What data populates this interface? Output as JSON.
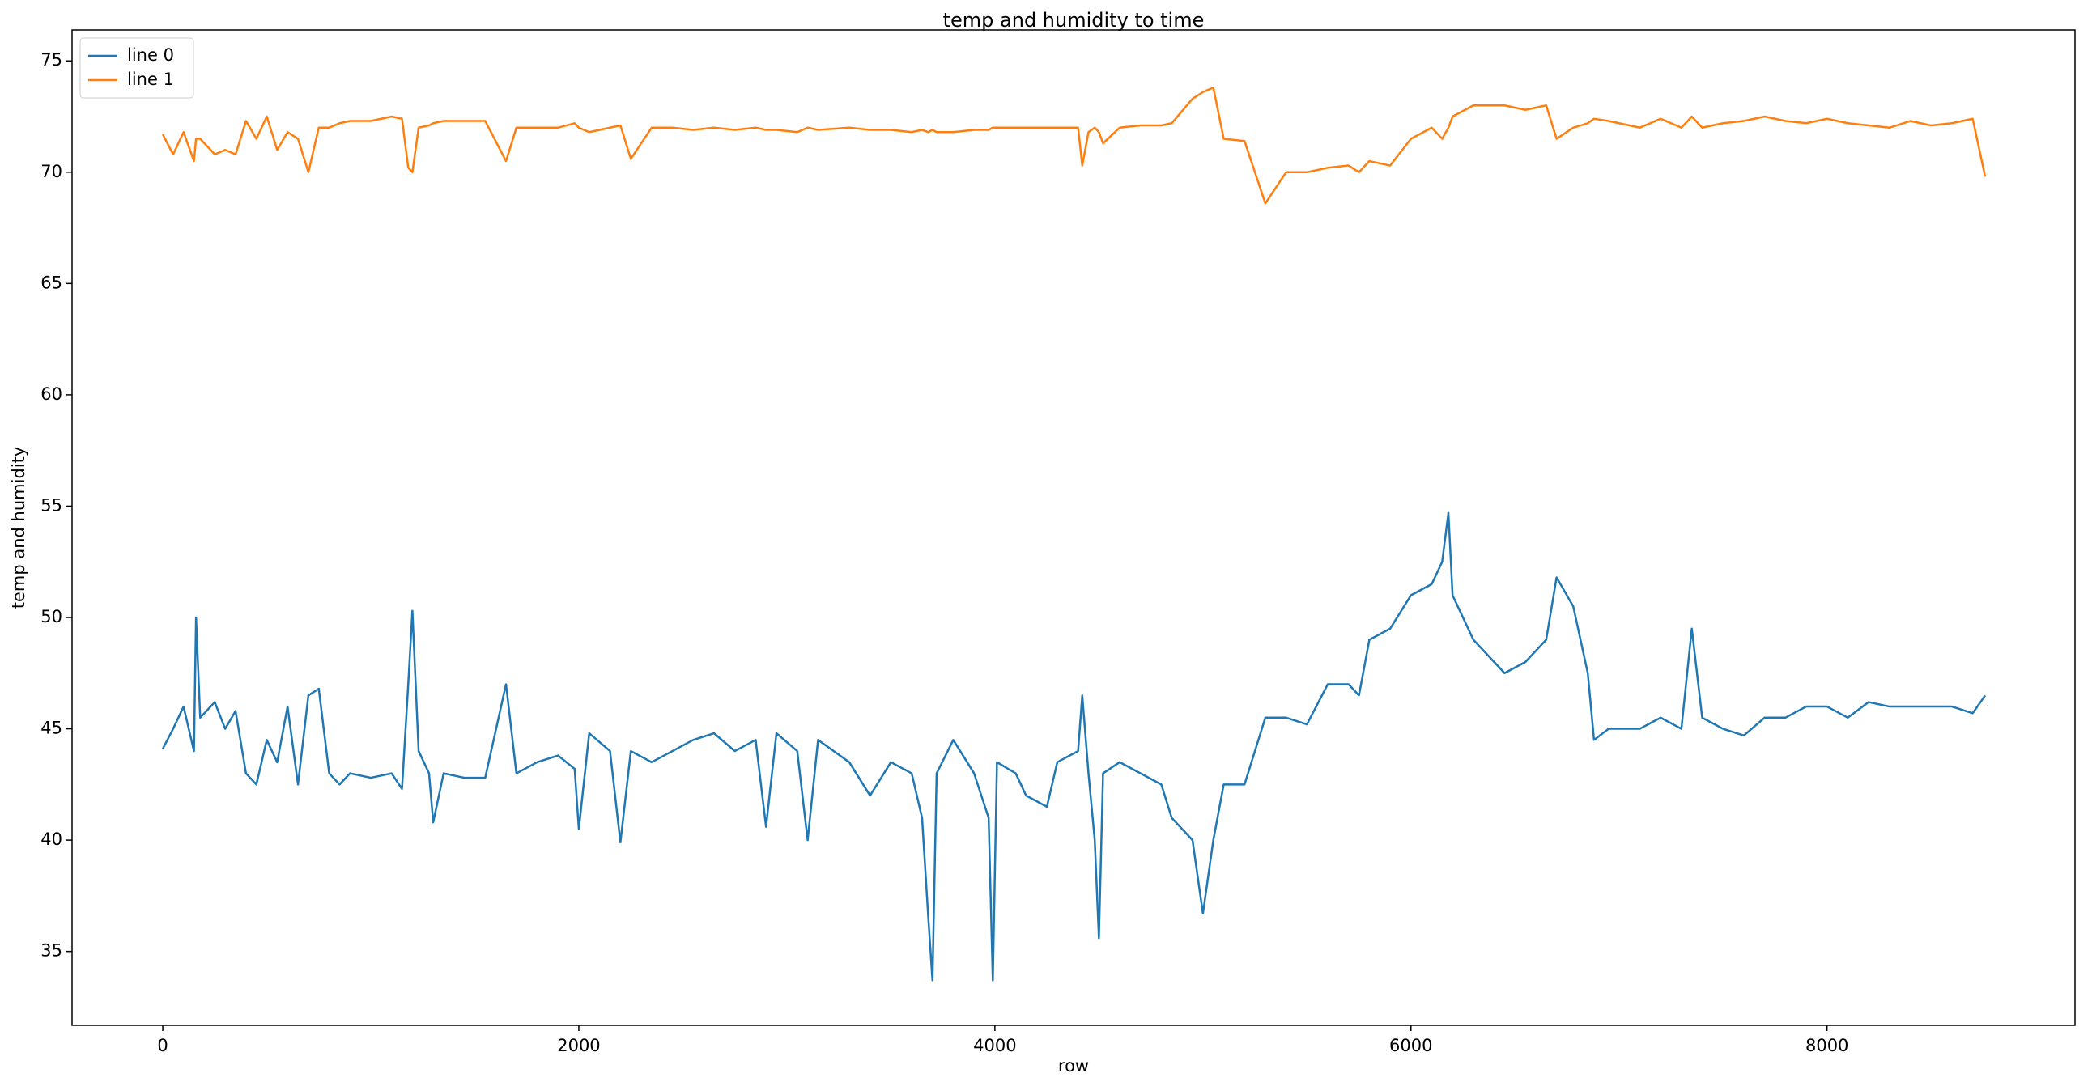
{
  "chart_data": {
    "type": "line",
    "title": "temp and humidity to time",
    "x_label": "row",
    "y_label": "temp and humidity",
    "x": [
      0,
      50,
      100,
      150,
      160,
      180,
      250,
      300,
      350,
      400,
      450,
      500,
      550,
      600,
      650,
      700,
      750,
      800,
      850,
      900,
      1000,
      1100,
      1150,
      1180,
      1200,
      1230,
      1280,
      1300,
      1350,
      1450,
      1550,
      1650,
      1700,
      1800,
      1900,
      1980,
      2000,
      2050,
      2150,
      2200,
      2250,
      2350,
      2450,
      2550,
      2650,
      2750,
      2850,
      2900,
      2950,
      3050,
      3100,
      3150,
      3300,
      3400,
      3500,
      3600,
      3650,
      3680,
      3700,
      3720,
      3800,
      3900,
      3970,
      3990,
      4010,
      4100,
      4150,
      4250,
      4300,
      4400,
      4420,
      4450,
      4480,
      4500,
      4520,
      4600,
      4700,
      4800,
      4850,
      4950,
      5000,
      5050,
      5100,
      5200,
      5300,
      5400,
      5500,
      5600,
      5700,
      5750,
      5800,
      5900,
      6000,
      6100,
      6150,
      6180,
      6200,
      6300,
      6400,
      6450,
      6550,
      6650,
      6700,
      6780,
      6850,
      6880,
      6950,
      7100,
      7200,
      7300,
      7350,
      7400,
      7500,
      7600,
      7700,
      7800,
      7900,
      8000,
      8100,
      8200,
      8300,
      8400,
      8500,
      8600,
      8700,
      8760
    ],
    "series": [
      {
        "name": "line 0",
        "color": "#1f77b4",
        "values": [
          44.1,
          45,
          46,
          44,
          50,
          45.5,
          46.2,
          45,
          45.8,
          43,
          42.5,
          44.5,
          43.5,
          46,
          42.5,
          46.5,
          46.8,
          43,
          42.5,
          43,
          42.8,
          43,
          42.3,
          47,
          50.3,
          44,
          43,
          40.8,
          43,
          42.8,
          42.8,
          47,
          43,
          43.5,
          43.8,
          43.2,
          40.5,
          44.8,
          44,
          39.9,
          44,
          43.5,
          44,
          44.5,
          44.8,
          44,
          44.5,
          40.6,
          44.8,
          44,
          40,
          44.5,
          43.5,
          42,
          43.5,
          43,
          41,
          36.5,
          33.7,
          43,
          44.5,
          43,
          41,
          33.7,
          43.5,
          43,
          42,
          41.5,
          43.5,
          44,
          46.5,
          43,
          40,
          35.6,
          43,
          43.5,
          43,
          42.5,
          41,
          40,
          36.7,
          40,
          42.5,
          42.5,
          45.5,
          45.5,
          45.2,
          47,
          47,
          46.5,
          49,
          49.5,
          51,
          51.5,
          52.5,
          54.7,
          51,
          49,
          48,
          47.5,
          48,
          49,
          51.8,
          50.5,
          47.5,
          44.5,
          45,
          45,
          45.5,
          45,
          49.5,
          45.5,
          45,
          44.7,
          45.5,
          45.5,
          46,
          46,
          45.5,
          46.2,
          46,
          46,
          46,
          46,
          45.7,
          46.5
        ]
      },
      {
        "name": "line 1",
        "color": "#ff7f0e",
        "values": [
          71.7,
          70.8,
          71.8,
          70.5,
          71.5,
          71.5,
          70.8,
          71,
          70.8,
          72.3,
          71.5,
          72.5,
          71,
          71.8,
          71.5,
          70,
          72,
          72,
          72.2,
          72.3,
          72.3,
          72.5,
          72.4,
          70.2,
          70,
          72,
          72.1,
          72.2,
          72.3,
          72.3,
          72.3,
          70.5,
          72,
          72,
          72,
          72.2,
          72,
          71.8,
          72,
          72.1,
          70.6,
          72,
          72,
          71.9,
          72,
          71.9,
          72,
          71.9,
          71.9,
          71.8,
          72,
          71.9,
          72,
          71.9,
          71.9,
          71.8,
          71.9,
          71.8,
          71.9,
          71.8,
          71.8,
          71.9,
          71.9,
          72,
          72,
          72,
          72,
          72,
          72,
          72,
          70.3,
          71.8,
          72,
          71.8,
          71.3,
          72,
          72.1,
          72.1,
          72.2,
          73.3,
          73.6,
          73.8,
          71.5,
          71.4,
          68.6,
          70,
          70,
          70.2,
          70.3,
          70,
          70.5,
          70.3,
          71.5,
          72,
          71.5,
          72,
          72.5,
          73,
          73,
          73,
          72.8,
          73,
          71.5,
          72,
          72.2,
          72.4,
          72.3,
          72,
          72.4,
          72,
          72.5,
          72,
          72.2,
          72.3,
          72.5,
          72.3,
          72.2,
          72.4,
          72.2,
          72.1,
          72,
          72.3,
          72.1,
          72.2,
          72.4,
          69.8
        ]
      }
    ],
    "xlim": [
      -436,
      9192
    ],
    "ylim": [
      31.68,
      76.39
    ],
    "xticks": [
      0,
      2000,
      4000,
      6000,
      8000
    ],
    "yticks": [
      35,
      40,
      45,
      50,
      55,
      60,
      65,
      70,
      75
    ],
    "legend": "upper left",
    "grid": false
  }
}
